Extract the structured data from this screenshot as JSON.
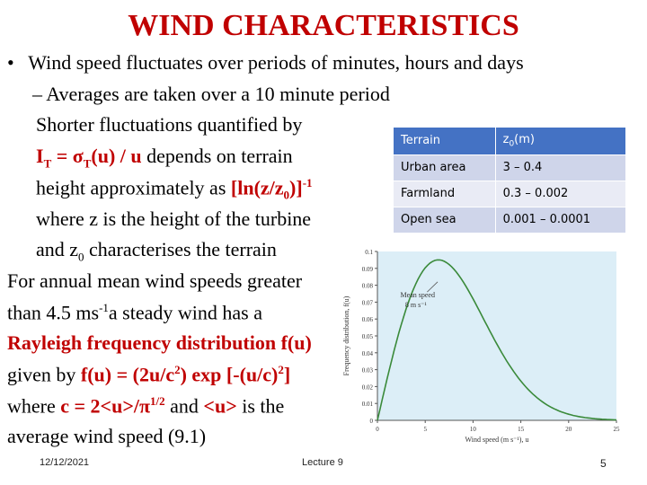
{
  "title": "WIND CHARACTERISTICS",
  "bullet": "•",
  "line1": "Wind speed fluctuates over periods of minutes, hours and days",
  "line2": "– Averages are taken over a 10 minute period",
  "line3": "Shorter fluctuations quantified by",
  "line4a": "I",
  "line4b": "T",
  "line4c": " = ",
  "line4d": "σ",
  "line4e": "T",
  "line4f": "(u) / u",
  "line4g": " depends on terrain",
  "line5a": "height  approximately as ",
  "line5b": "[ln(z/z",
  "line5c": "0",
  "line5d": ")]",
  "line5e": "-1",
  "line6": "where z is the height of the turbine",
  "line7a": "and z",
  "line7b": "0",
  "line7c": " characterises the terrain",
  "line8": "For annual mean wind speeds greater",
  "line9a": "than 4.5 ms",
  "line9b": "-1",
  "line9c": "a steady wind has a",
  "line10": "Rayleigh frequency distribution f(u)",
  "line11a": "given by  ",
  "line11b": "f(u) = (2u/c",
  "line11c": "2",
  "line11d": ") exp [-(u/c)",
  "line11e": "2",
  "line11f": "]",
  "line12a": "where ",
  "line12b": "c = 2<u>/π",
  "line12c": "1/2",
  "line12d": " and ",
  "line12e": "<u>",
  "line12f": " is the",
  "line13": "average wind speed   (9.1)",
  "table": {
    "headers": [
      "Terrain",
      "z0(m)"
    ],
    "header_z": "z",
    "header_sub": "0",
    "header_unit": "(m)",
    "rows": [
      [
        "Urban area",
        "3 – 0.4"
      ],
      [
        "Farmland",
        "0.3 – 0.002"
      ],
      [
        "Open sea",
        "0.001 – 0.0001"
      ]
    ]
  },
  "chart_data": {
    "type": "line",
    "xlabel": "Wind speed (m s⁻¹), u",
    "ylabel": "Frequency distribution, f(u)",
    "annotation_line1": "Mean speed",
    "annotation_line2": "8 m s⁻¹",
    "xlim": [
      0,
      25
    ],
    "ylim": [
      0,
      0.1
    ],
    "x_ticks": [
      "0",
      "5",
      "10",
      "15",
      "20",
      "25"
    ],
    "y_ticks": [
      "0",
      "0.01",
      "0.02",
      "0.03",
      "0.04",
      "0.05",
      "0.06",
      "0.07",
      "0.08",
      "0.09",
      "0.1"
    ],
    "mean_speed": 8,
    "color": "#3a8a3a"
  },
  "footer": {
    "date": "12/12/2021",
    "center": "Lecture 9",
    "page": "5"
  }
}
